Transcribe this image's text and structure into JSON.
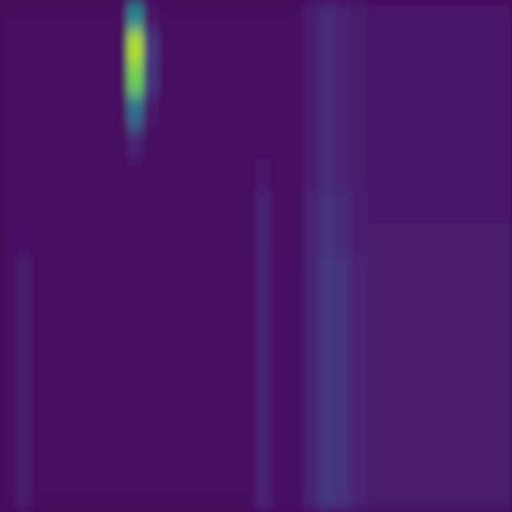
{
  "chart_data": {
    "type": "heatmap",
    "tick_labels": false,
    "zlim": [
      0,
      1
    ],
    "z": [
      [
        0.03,
        0.03,
        0.03,
        0.03,
        0.03,
        0.03,
        0.03,
        0.03,
        0.45,
        0.06,
        0.03,
        0.03,
        0.03,
        0.03,
        0.03,
        0.03,
        0.03,
        0.03,
        0.03,
        0.08,
        0.12,
        0.1,
        0.07,
        0.06,
        0.06,
        0.06,
        0.06,
        0.06,
        0.06,
        0.06,
        0.06,
        0.06
      ],
      [
        0.03,
        0.03,
        0.03,
        0.03,
        0.03,
        0.03,
        0.03,
        0.03,
        0.88,
        0.15,
        0.03,
        0.03,
        0.03,
        0.03,
        0.03,
        0.03,
        0.03,
        0.03,
        0.03,
        0.08,
        0.12,
        0.1,
        0.07,
        0.06,
        0.06,
        0.06,
        0.06,
        0.06,
        0.06,
        0.06,
        0.06,
        0.06
      ],
      [
        0.03,
        0.03,
        0.03,
        0.03,
        0.03,
        0.03,
        0.03,
        0.03,
        0.78,
        0.14,
        0.03,
        0.03,
        0.03,
        0.03,
        0.03,
        0.03,
        0.03,
        0.03,
        0.03,
        0.08,
        0.12,
        0.1,
        0.07,
        0.06,
        0.06,
        0.06,
        0.06,
        0.06,
        0.06,
        0.06,
        0.06,
        0.06
      ],
      [
        0.03,
        0.03,
        0.03,
        0.03,
        0.03,
        0.03,
        0.03,
        0.03,
        0.35,
        0.06,
        0.03,
        0.03,
        0.03,
        0.03,
        0.03,
        0.03,
        0.03,
        0.03,
        0.03,
        0.08,
        0.12,
        0.1,
        0.07,
        0.06,
        0.06,
        0.06,
        0.06,
        0.06,
        0.06,
        0.06,
        0.06,
        0.06
      ],
      [
        0.03,
        0.03,
        0.03,
        0.03,
        0.03,
        0.03,
        0.03,
        0.03,
        0.1,
        0.03,
        0.03,
        0.03,
        0.03,
        0.03,
        0.03,
        0.03,
        0.03,
        0.03,
        0.03,
        0.08,
        0.12,
        0.1,
        0.07,
        0.06,
        0.06,
        0.06,
        0.06,
        0.06,
        0.06,
        0.06,
        0.06,
        0.06
      ],
      [
        0.03,
        0.03,
        0.03,
        0.03,
        0.03,
        0.03,
        0.03,
        0.03,
        0.03,
        0.03,
        0.03,
        0.03,
        0.03,
        0.03,
        0.03,
        0.03,
        0.06,
        0.03,
        0.03,
        0.08,
        0.12,
        0.1,
        0.07,
        0.06,
        0.06,
        0.06,
        0.06,
        0.06,
        0.06,
        0.06,
        0.06,
        0.06
      ],
      [
        0.03,
        0.03,
        0.03,
        0.03,
        0.03,
        0.03,
        0.03,
        0.03,
        0.03,
        0.03,
        0.03,
        0.03,
        0.03,
        0.03,
        0.03,
        0.03,
        0.09,
        0.03,
        0.03,
        0.09,
        0.14,
        0.12,
        0.08,
        0.06,
        0.06,
        0.06,
        0.06,
        0.06,
        0.06,
        0.06,
        0.06,
        0.06
      ],
      [
        0.03,
        0.04,
        0.03,
        0.03,
        0.03,
        0.03,
        0.03,
        0.03,
        0.03,
        0.03,
        0.03,
        0.03,
        0.03,
        0.03,
        0.03,
        0.03,
        0.09,
        0.03,
        0.03,
        0.09,
        0.14,
        0.12,
        0.08,
        0.07,
        0.07,
        0.07,
        0.07,
        0.07,
        0.07,
        0.07,
        0.07,
        0.07
      ],
      [
        0.03,
        0.07,
        0.03,
        0.03,
        0.03,
        0.03,
        0.03,
        0.03,
        0.03,
        0.03,
        0.03,
        0.03,
        0.03,
        0.03,
        0.03,
        0.03,
        0.1,
        0.04,
        0.04,
        0.1,
        0.16,
        0.14,
        0.1,
        0.07,
        0.07,
        0.07,
        0.07,
        0.07,
        0.07,
        0.07,
        0.07,
        0.07
      ],
      [
        0.03,
        0.07,
        0.03,
        0.03,
        0.03,
        0.03,
        0.03,
        0.03,
        0.03,
        0.03,
        0.03,
        0.03,
        0.03,
        0.03,
        0.03,
        0.03,
        0.1,
        0.04,
        0.04,
        0.1,
        0.16,
        0.14,
        0.1,
        0.07,
        0.07,
        0.07,
        0.07,
        0.07,
        0.07,
        0.07,
        0.07,
        0.07
      ],
      [
        0.03,
        0.07,
        0.03,
        0.03,
        0.03,
        0.03,
        0.03,
        0.03,
        0.03,
        0.03,
        0.03,
        0.03,
        0.03,
        0.03,
        0.03,
        0.03,
        0.1,
        0.04,
        0.04,
        0.1,
        0.16,
        0.14,
        0.1,
        0.07,
        0.07,
        0.07,
        0.07,
        0.07,
        0.07,
        0.07,
        0.07,
        0.07
      ],
      [
        0.03,
        0.07,
        0.03,
        0.03,
        0.03,
        0.03,
        0.03,
        0.03,
        0.03,
        0.03,
        0.03,
        0.03,
        0.03,
        0.03,
        0.03,
        0.03,
        0.1,
        0.04,
        0.04,
        0.1,
        0.16,
        0.14,
        0.1,
        0.07,
        0.07,
        0.07,
        0.07,
        0.07,
        0.07,
        0.07,
        0.07,
        0.07
      ],
      [
        0.03,
        0.07,
        0.03,
        0.03,
        0.03,
        0.03,
        0.03,
        0.03,
        0.03,
        0.03,
        0.03,
        0.03,
        0.03,
        0.03,
        0.03,
        0.03,
        0.1,
        0.04,
        0.04,
        0.1,
        0.16,
        0.14,
        0.1,
        0.07,
        0.07,
        0.07,
        0.07,
        0.07,
        0.07,
        0.07,
        0.07,
        0.07
      ],
      [
        0.03,
        0.07,
        0.03,
        0.03,
        0.03,
        0.03,
        0.03,
        0.03,
        0.03,
        0.03,
        0.03,
        0.03,
        0.03,
        0.03,
        0.03,
        0.03,
        0.1,
        0.04,
        0.04,
        0.1,
        0.16,
        0.14,
        0.1,
        0.07,
        0.07,
        0.07,
        0.07,
        0.07,
        0.07,
        0.07,
        0.07,
        0.07
      ],
      [
        0.03,
        0.07,
        0.03,
        0.03,
        0.03,
        0.03,
        0.03,
        0.03,
        0.03,
        0.03,
        0.03,
        0.03,
        0.03,
        0.03,
        0.03,
        0.03,
        0.1,
        0.04,
        0.04,
        0.1,
        0.16,
        0.14,
        0.1,
        0.07,
        0.07,
        0.07,
        0.07,
        0.07,
        0.07,
        0.07,
        0.07,
        0.07
      ],
      [
        0.03,
        0.07,
        0.03,
        0.03,
        0.03,
        0.03,
        0.03,
        0.03,
        0.03,
        0.03,
        0.03,
        0.03,
        0.03,
        0.03,
        0.03,
        0.03,
        0.1,
        0.04,
        0.04,
        0.1,
        0.16,
        0.14,
        0.1,
        0.07,
        0.07,
        0.07,
        0.07,
        0.07,
        0.07,
        0.07,
        0.07,
        0.07
      ]
    ]
  }
}
